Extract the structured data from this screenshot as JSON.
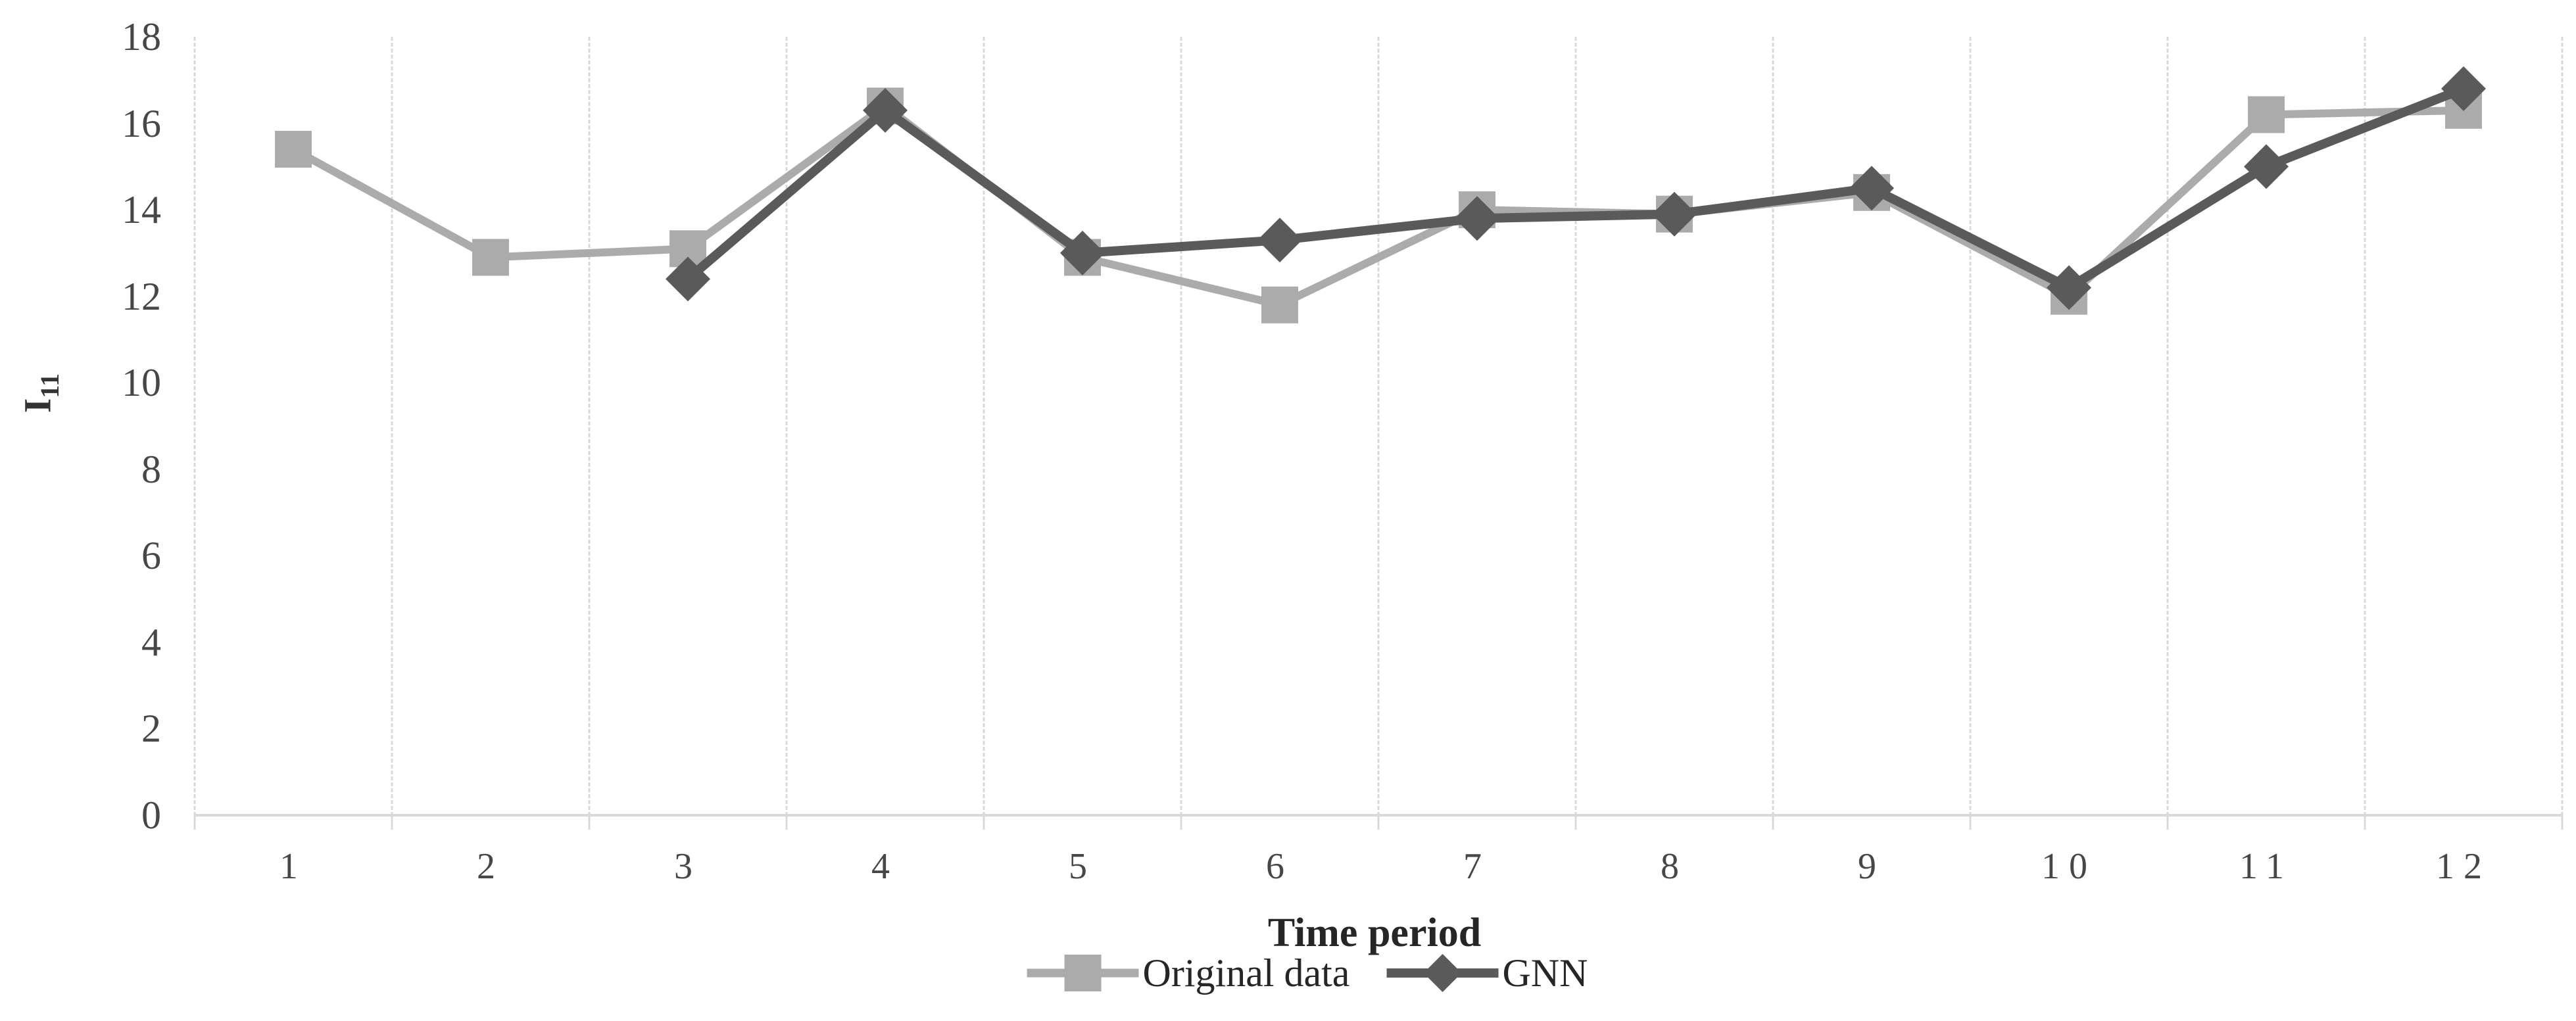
{
  "chart_data": {
    "type": "line",
    "title": "",
    "xlabel": "Time period",
    "ylabel": "I",
    "ylabel_subscript": "11",
    "categories": [
      "1",
      "2",
      "3",
      "4",
      "5",
      "6",
      "7",
      "8",
      "9",
      "10",
      "11",
      "12"
    ],
    "y_ticks": [
      0,
      2,
      4,
      6,
      8,
      10,
      12,
      14,
      16,
      18
    ],
    "ylim": [
      0,
      18
    ],
    "grid": "vertical-only",
    "legend_position": "bottom-center",
    "series": [
      {
        "name": "Original data",
        "marker": "square",
        "color": "#ababab",
        "values": [
          15.4,
          12.9,
          13.1,
          16.4,
          12.9,
          11.8,
          14.0,
          13.9,
          14.4,
          12.0,
          16.2,
          16.3
        ]
      },
      {
        "name": "GNN",
        "marker": "diamond",
        "color": "#5a5a5a",
        "values": [
          null,
          null,
          12.4,
          16.3,
          13.0,
          13.3,
          13.8,
          13.9,
          14.5,
          12.2,
          15.0,
          16.8
        ]
      }
    ],
    "colors": {
      "gridline": "#d9d9d9",
      "axis_line": "#d9d9d9",
      "tick_text": "#474747",
      "title_text": "#262626"
    }
  }
}
